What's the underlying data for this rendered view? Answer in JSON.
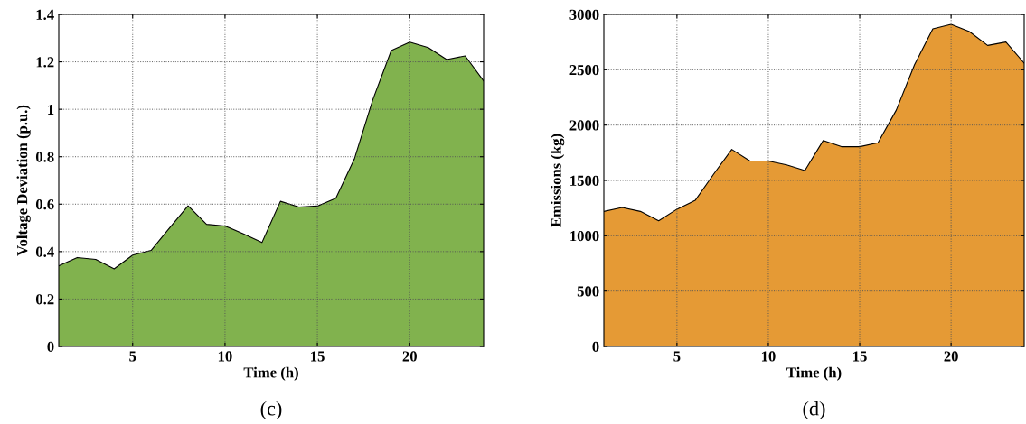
{
  "chart_data": [
    {
      "type": "area",
      "xlabel": "Time (h)",
      "ylabel": "Voltage Deviation (p.u.)",
      "annotations": [
        "(c)"
      ],
      "x": [
        1,
        2,
        3,
        4,
        5,
        6,
        7,
        8,
        9,
        10,
        11,
        12,
        13,
        14,
        15,
        16,
        17,
        18,
        19,
        20,
        21,
        22,
        23,
        24
      ],
      "series": [
        {
          "color": "#81b24e",
          "values": [
            0.34,
            0.375,
            0.367,
            0.327,
            0.385,
            0.405,
            0.5,
            0.593,
            0.515,
            0.508,
            0.475,
            0.438,
            0.612,
            0.588,
            0.592,
            0.625,
            0.79,
            1.04,
            1.248,
            1.283,
            1.26,
            1.21,
            1.225,
            1.12
          ]
        }
      ],
      "xlim": [
        1,
        24
      ],
      "xticks": [
        5,
        10,
        15,
        20
      ],
      "ylim": [
        0,
        1.4
      ],
      "yticks": [
        0,
        0.2,
        0.4,
        0.6,
        0.8,
        1,
        1.2,
        1.4
      ],
      "grid": true
    },
    {
      "type": "area",
      "xlabel": "Time (h)",
      "ylabel": "Emissions (kg)",
      "annotations": [
        "(d)"
      ],
      "x": [
        1,
        2,
        3,
        4,
        5,
        6,
        7,
        8,
        9,
        10,
        11,
        12,
        13,
        14,
        15,
        16,
        17,
        18,
        19,
        20,
        21,
        22,
        23,
        24
      ],
      "series": [
        {
          "color": "#e59a35",
          "values": [
            1220,
            1255,
            1220,
            1135,
            1240,
            1320,
            1555,
            1780,
            1675,
            1675,
            1640,
            1590,
            1860,
            1805,
            1805,
            1840,
            2135,
            2545,
            2870,
            2910,
            2845,
            2720,
            2750,
            2560
          ]
        }
      ],
      "xlim": [
        1,
        24
      ],
      "xticks": [
        5,
        10,
        15,
        20
      ],
      "ylim": [
        0,
        3000
      ],
      "yticks": [
        0,
        500,
        1000,
        1500,
        2000,
        2500,
        3000
      ],
      "grid": true
    }
  ]
}
